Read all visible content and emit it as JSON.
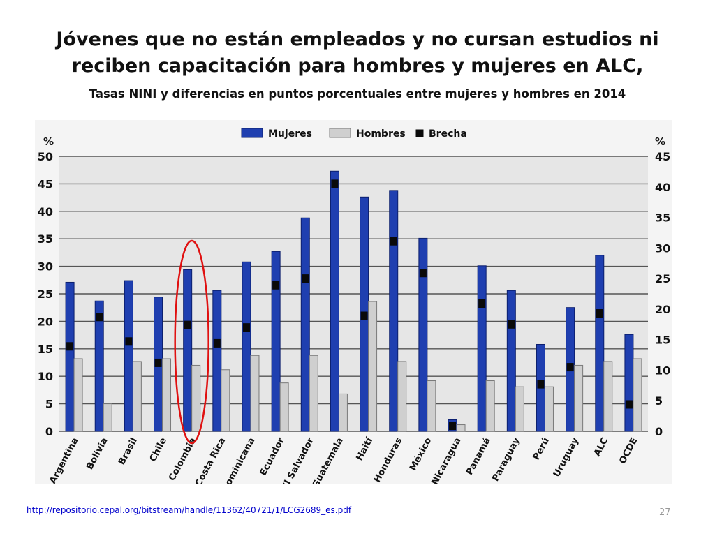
{
  "slide": {
    "title_line1": "Jóvenes que no están empleados y no cursan estudios ni",
    "title_line2": "reciben capacitación para hombres y mujeres en ALC,",
    "subtitle": "Tasas NINI y diferencias en puntos porcentuales entre mujeres y hombres en 2014",
    "source_url": "http://repositorio.cepal.org/bitstream/handle/11362/40721/1/LCG2689_es.pdf",
    "page_number": "27"
  },
  "colors": {
    "mujeres": "#1f3fb0",
    "mujeres_stroke": "#0c1f6e",
    "hombres": "#cfcfcf",
    "hombres_stroke": "#7a7a7a",
    "brecha": "#0a0a0a",
    "plot_bg": "#e6e6e6",
    "highlight": "#e01010"
  },
  "chart_data": {
    "type": "bar",
    "categories": [
      "Argentina",
      "Bolivia",
      "Brasil",
      "Chile",
      "Colombia",
      "Costa Rica",
      "Rep. Dominicana",
      "Ecuador",
      "El Salvador",
      "Guatemala",
      "Haití",
      "Honduras",
      "México",
      "Nicaragua",
      "Panamá",
      "Paraguay",
      "Perú",
      "Uruguay",
      "ALC",
      "OCDE"
    ],
    "series": [
      {
        "name": "Mujeres",
        "axis": "left",
        "values": [
          27.1,
          23.7,
          27.4,
          24.4,
          29.4,
          25.6,
          30.8,
          32.7,
          38.8,
          47.3,
          42.6,
          43.8,
          35.1,
          2.1,
          30.1,
          25.6,
          15.8,
          22.5,
          32.0,
          17.6
        ]
      },
      {
        "name": "Hombres",
        "axis": "left",
        "values": [
          13.2,
          5.0,
          12.7,
          13.2,
          12.0,
          11.2,
          13.8,
          8.8,
          13.8,
          6.8,
          23.6,
          12.7,
          9.2,
          1.2,
          9.2,
          8.1,
          8.1,
          12.0,
          12.7,
          13.2
        ]
      },
      {
        "name": "Brecha",
        "axis": "right",
        "values": [
          13.9,
          18.7,
          14.7,
          11.2,
          17.4,
          14.4,
          17.0,
          23.9,
          25.0,
          40.5,
          18.9,
          31.1,
          25.9,
          0.9,
          20.9,
          17.5,
          7.7,
          10.5,
          19.3,
          4.4
        ]
      }
    ],
    "legend": [
      "Mujeres",
      "Hombres",
      "Brecha"
    ],
    "legend_position": "top",
    "y_left": {
      "label": "%",
      "min": 0,
      "max": 50,
      "ticks": [
        "0",
        "5",
        "10",
        "15",
        "20",
        "25",
        "30",
        "35",
        "40",
        "45",
        "50"
      ]
    },
    "y_right": {
      "label": "%",
      "min": 0,
      "max": 45,
      "ticks": [
        "0",
        "5",
        "10",
        "15",
        "20",
        "25",
        "30",
        "35",
        "40",
        "45"
      ]
    },
    "grid": true,
    "highlighted_category": "Colombia"
  }
}
